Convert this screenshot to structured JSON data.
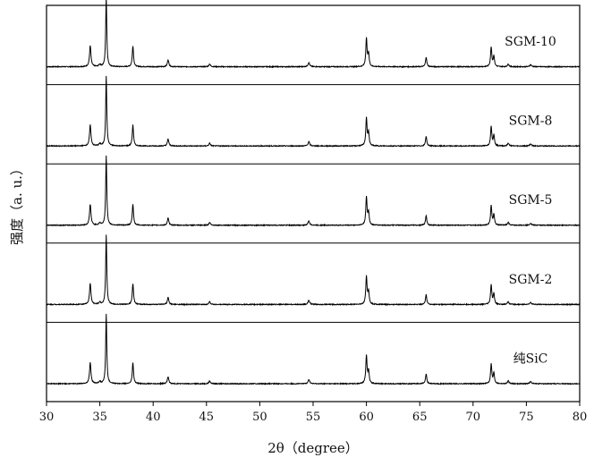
{
  "chart_data": {
    "type": "line",
    "xlabel": "2θ（degree）",
    "ylabel": "强度（a. u.）",
    "xlim": [
      30,
      80
    ],
    "xticks": [
      30,
      35,
      40,
      45,
      50,
      55,
      60,
      65,
      70,
      75,
      80
    ],
    "grid": false,
    "stacked": true,
    "panel_separators": true,
    "series_color": "#000000",
    "peaks": [
      {
        "x": 34.1,
        "height": 0.3,
        "width": 0.08
      },
      {
        "x": 35.0,
        "height": 0.03,
        "width": 0.1
      },
      {
        "x": 35.6,
        "height": 1.0,
        "width": 0.06
      },
      {
        "x": 38.1,
        "height": 0.3,
        "width": 0.07
      },
      {
        "x": 41.4,
        "height": 0.1,
        "width": 0.08
      },
      {
        "x": 45.3,
        "height": 0.04,
        "width": 0.08
      },
      {
        "x": 54.6,
        "height": 0.06,
        "width": 0.09
      },
      {
        "x": 60.0,
        "height": 0.4,
        "width": 0.07
      },
      {
        "x": 60.2,
        "height": 0.18,
        "width": 0.07
      },
      {
        "x": 65.6,
        "height": 0.14,
        "width": 0.07
      },
      {
        "x": 71.7,
        "height": 0.28,
        "width": 0.07
      },
      {
        "x": 71.95,
        "height": 0.15,
        "width": 0.07
      },
      {
        "x": 73.3,
        "height": 0.04,
        "width": 0.08
      },
      {
        "x": 75.4,
        "height": 0.03,
        "width": 0.09
      }
    ],
    "series": [
      {
        "name": "SGM-10"
      },
      {
        "name": "SGM-8"
      },
      {
        "name": "SGM-5"
      },
      {
        "name": "SGM-2"
      },
      {
        "name": "纯SiC"
      }
    ]
  }
}
